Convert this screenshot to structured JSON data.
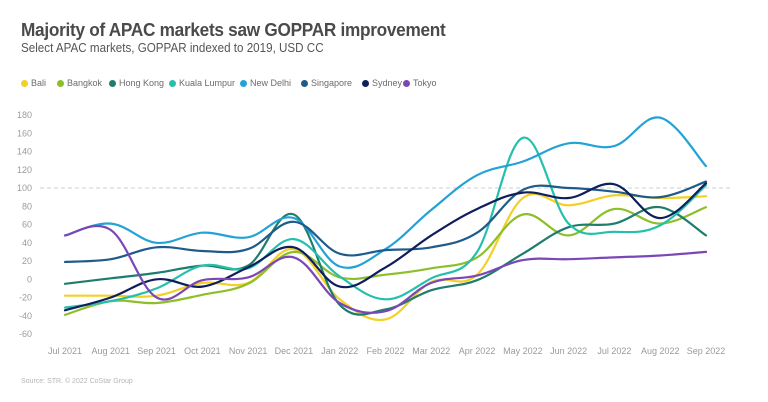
{
  "header": {
    "title": "Majority of APAC markets saw GOPPAR improvement",
    "subtitle": "Select APAC markets, GOPPAR indexed to 2019, USD CC"
  },
  "footer": {
    "source": "Source: STR. © 2022 CoStar Group"
  },
  "chart_data": {
    "type": "line",
    "title": "Majority of APAC markets saw GOPPAR improvement",
    "subtitle": "Select APAC markets, GOPPAR indexed to 2019, USD CC",
    "xlabel": "",
    "ylabel": "",
    "categories": [
      "Jul 2021",
      "Aug 2021",
      "Sep 2021",
      "Oct 2021",
      "Nov 2021",
      "Dec 2021",
      "Jan 2022",
      "Feb 2022",
      "Mar 2022",
      "Apr 2022",
      "May 2022",
      "Jun 2022",
      "Jul 2022",
      "Aug 2022",
      "Sep 2022"
    ],
    "yticks": [
      -60,
      -40,
      -20,
      0,
      20,
      40,
      60,
      80,
      100,
      120,
      140,
      160,
      180
    ],
    "ylim": [
      -60,
      180
    ],
    "grid": false,
    "reference_line": {
      "value": 100,
      "style": "dashed"
    },
    "legend_position": "top-left",
    "series": [
      {
        "name": "Bali",
        "color": "#f2d024",
        "values": [
          -18,
          -18,
          -18,
          -4,
          -4,
          33,
          -22,
          -44,
          -3,
          5,
          89,
          81,
          92,
          89,
          91
        ]
      },
      {
        "name": "Bangkok",
        "color": "#8dbf2a",
        "values": [
          -39,
          -24,
          -26,
          -17,
          -5,
          30,
          2,
          5,
          12,
          24,
          71,
          48,
          77,
          61,
          79
        ]
      },
      {
        "name": "Hong Kong",
        "color": "#1e7d6c",
        "values": [
          -5,
          1,
          7,
          15,
          15,
          71,
          -28,
          -33,
          -12,
          -1,
          28,
          57,
          61,
          79,
          48
        ]
      },
      {
        "name": "Kuala Lumpur",
        "color": "#25bfae",
        "values": [
          -31,
          -24,
          -10,
          15,
          12,
          44,
          3,
          -22,
          1,
          30,
          155,
          61,
          52,
          59,
          103
        ]
      },
      {
        "name": "New Delhi",
        "color": "#23a2d6",
        "values": [
          48,
          61,
          40,
          51,
          46,
          67,
          14,
          33,
          76,
          114,
          129,
          149,
          146,
          177,
          124
        ]
      },
      {
        "name": "Singapore",
        "color": "#1f5b8a",
        "values": [
          19,
          22,
          35,
          31,
          33,
          63,
          28,
          32,
          35,
          51,
          98,
          100,
          96,
          90,
          107
        ]
      },
      {
        "name": "Sydney",
        "color": "#101f5c",
        "values": [
          -34,
          -20,
          0,
          -8,
          13,
          35,
          -8,
          13,
          48,
          77,
          95,
          89,
          104,
          67,
          105
        ]
      },
      {
        "name": "Tokyo",
        "color": "#7b46b6",
        "values": [
          48,
          54,
          -20,
          -1,
          2,
          24,
          -26,
          -35,
          -4,
          4,
          21,
          22,
          24,
          26,
          30
        ]
      }
    ]
  }
}
